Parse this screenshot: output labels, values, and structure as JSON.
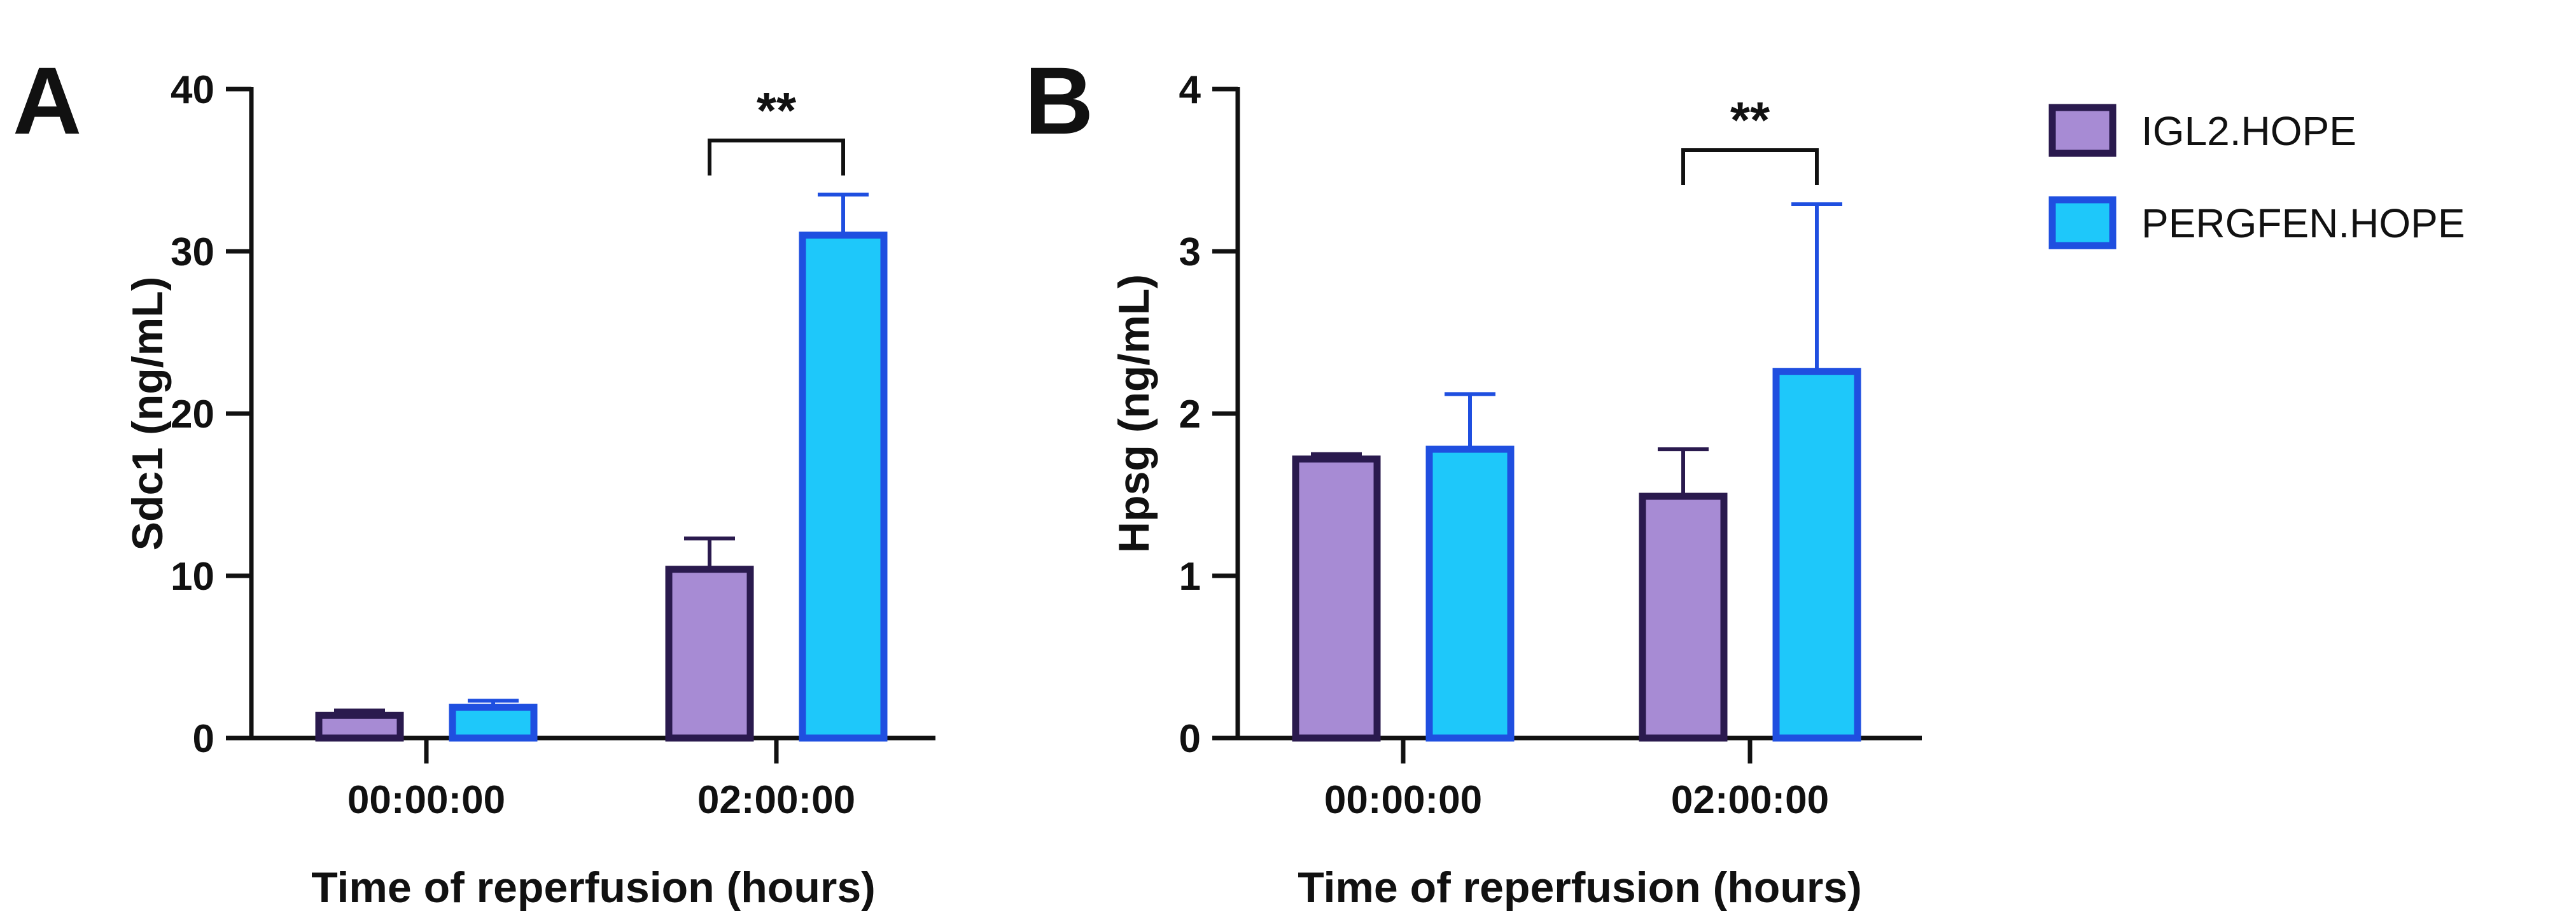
{
  "figure": {
    "legend": [
      {
        "label": "IGL2.HOPE",
        "fill": "#a78bd4",
        "stroke": "#2a1a4e"
      },
      {
        "label": "PERGFEN.HOPE",
        "fill": "#1ec8fa",
        "stroke": "#1f4fe0"
      }
    ]
  },
  "chart_data": [
    {
      "type": "bar",
      "panel": "A",
      "title": "",
      "xlabel": "Time of reperfusion (hours)",
      "ylabel": "Sdc1 (ng/mL)",
      "ylim": [
        0,
        40
      ],
      "yticks": [
        0,
        10,
        20,
        30,
        40
      ],
      "ytick_labels": [
        "0",
        "10",
        "20",
        "30",
        "40"
      ],
      "categories": [
        "00:00:00",
        "02:00:00"
      ],
      "series": [
        {
          "name": "IGL2.HOPE",
          "values": [
            1.4,
            10.4
          ],
          "errors": [
            0.3,
            1.9
          ]
        },
        {
          "name": "PERGFEN.HOPE",
          "values": [
            1.9,
            31.0
          ],
          "errors": [
            0.4,
            2.5
          ]
        }
      ],
      "annotations": [
        {
          "category": "02:00:00",
          "text": "**"
        }
      ]
    },
    {
      "type": "bar",
      "panel": "B",
      "title": "",
      "xlabel": "Time of reperfusion (hours)",
      "ylabel": "Hpsg (ng/mL)",
      "ylim": [
        0,
        4
      ],
      "yticks": [
        0,
        1,
        2,
        3,
        4
      ],
      "ytick_labels": [
        "0",
        "1",
        "2",
        "3",
        "4"
      ],
      "categories": [
        "00:00:00",
        "02:00:00"
      ],
      "series": [
        {
          "name": "IGL2.HOPE",
          "values": [
            1.72,
            1.49
          ],
          "errors": [
            0.03,
            0.29
          ]
        },
        {
          "name": "PERGFEN.HOPE",
          "values": [
            1.78,
            2.26
          ],
          "errors": [
            0.34,
            1.03
          ]
        }
      ],
      "annotations": [
        {
          "category": "02:00:00",
          "text": "**"
        }
      ]
    }
  ]
}
